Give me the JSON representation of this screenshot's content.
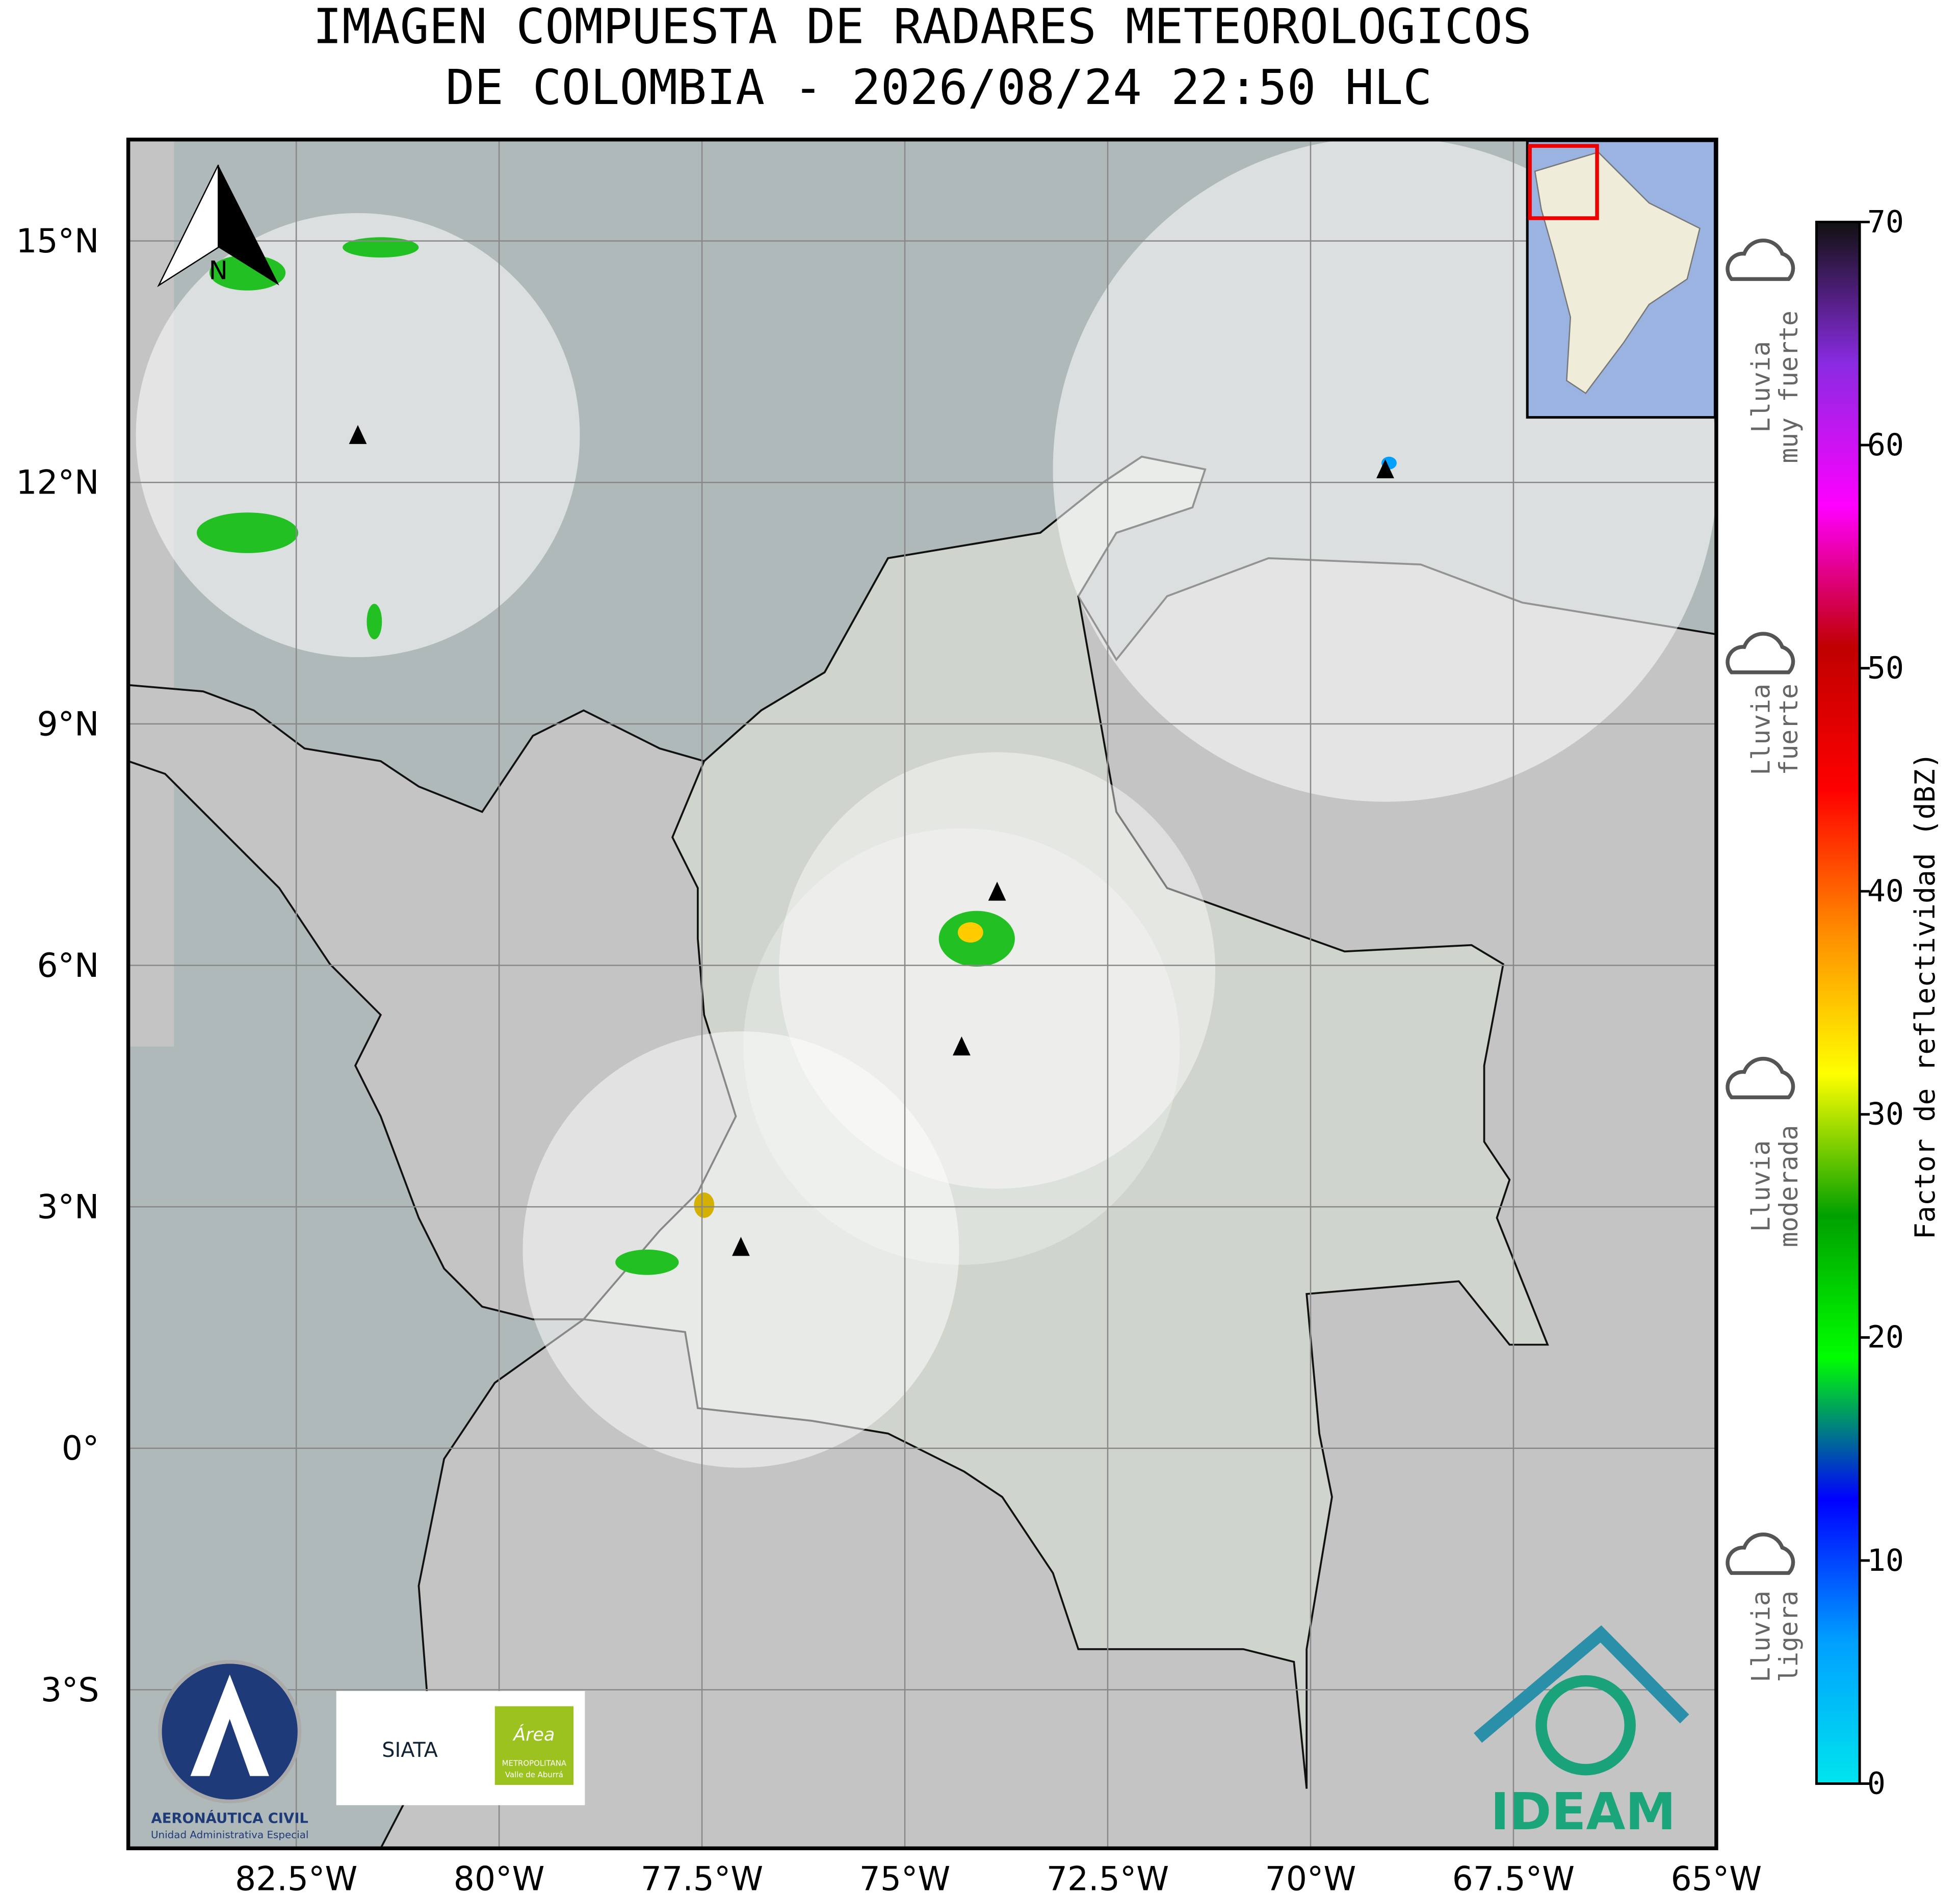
{
  "title": [
    "IMAGEN COMPUESTA DE RADARES METEOROLOGICOS",
    "DE COLOMBIA - 2026/08/24 22:50 HLC"
  ],
  "map": {
    "xlim": [
      -84.57,
      -65
    ],
    "ylim": [
      -4.97,
      16.26
    ],
    "xticks": [
      {
        "value": -82.5,
        "label": "82.5°W"
      },
      {
        "value": -80,
        "label": "80°W"
      },
      {
        "value": -77.5,
        "label": "77.5°W"
      },
      {
        "value": -75,
        "label": "75°W"
      },
      {
        "value": -72.5,
        "label": "72.5°W"
      },
      {
        "value": -70,
        "label": "70°W"
      },
      {
        "value": -67.5,
        "label": "67.5°W"
      },
      {
        "value": -65,
        "label": "65°W"
      }
    ],
    "yticks": [
      {
        "value": 15,
        "label": "15°N"
      },
      {
        "value": 12,
        "label": "12°N"
      },
      {
        "value": 9,
        "label": "9°N"
      },
      {
        "value": 6,
        "label": "6°N"
      },
      {
        "value": 3,
        "label": "3°N"
      },
      {
        "value": 0,
        "label": "0°"
      },
      {
        "value": -3,
        "label": "3°S"
      }
    ],
    "north": "N"
  },
  "colorbar": {
    "label": "Factor de reflectividad (dBZ)",
    "lim": [
      0,
      70
    ],
    "ticks": [
      0,
      10,
      20,
      30,
      40,
      50,
      60,
      70
    ],
    "colors": [
      "#00e5ee",
      "#00a0ff",
      "#0000ff",
      "#00ff00",
      "#00a000",
      "#ffff00",
      "#ff8c00",
      "#ff0000",
      "#c00000",
      "#ff00ff",
      "#8a2be2",
      "#111111"
    ]
  },
  "rain_classes": [
    [
      "Lluvia",
      "muy fuerte"
    ],
    [
      "Lluvia",
      "fuerte"
    ],
    [
      "Lluvia",
      "moderada"
    ],
    [
      "Lluvia",
      "ligera"
    ]
  ],
  "logos": {
    "aerocivil": [
      "AERONÁUTICA CIVIL",
      "Unidad Administrativa Especial"
    ],
    "siata": "SIATA",
    "area": [
      "Área",
      "METROPOLITANA",
      "Valle de Aburrá"
    ],
    "ideam": "IDEAM"
  }
}
